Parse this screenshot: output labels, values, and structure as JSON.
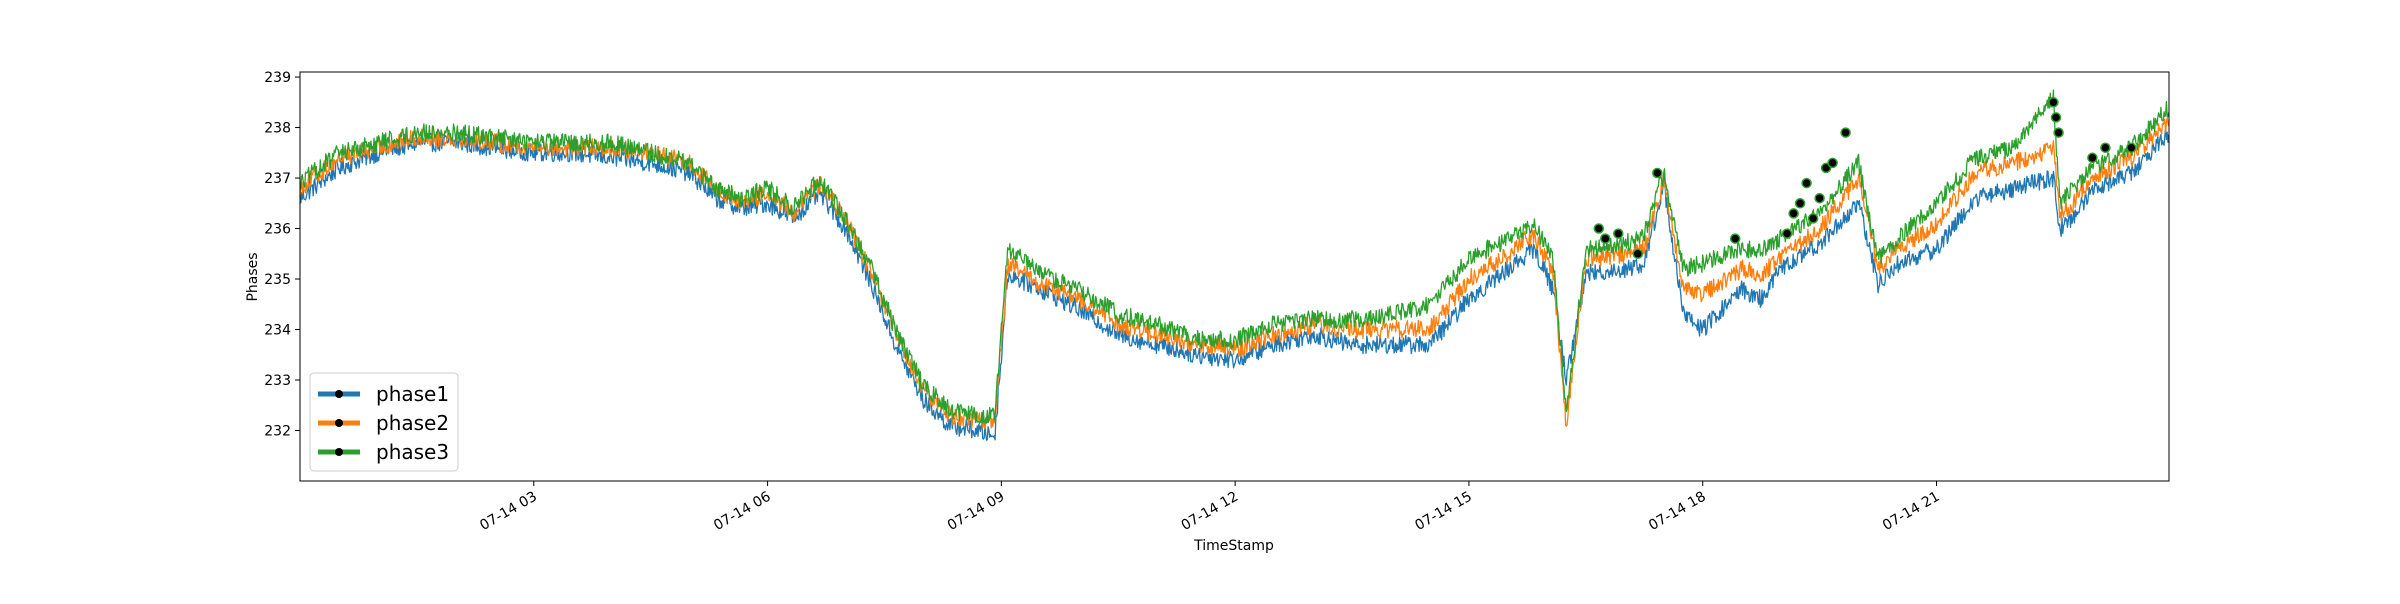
{
  "chart_data": {
    "type": "line",
    "title": "",
    "xlabel": "TimeStamp",
    "ylabel": "Phases",
    "xlim": [
      "07-14 00:00",
      "07-14 23:59"
    ],
    "ylim": [
      231.0,
      239.1
    ],
    "x_ticks": [
      "07-14 03",
      "07-14 06",
      "07-14 09",
      "07-14 12",
      "07-14 15",
      "07-14 18",
      "07-14 21"
    ],
    "y_ticks": [
      "232",
      "233",
      "234",
      "235",
      "236",
      "237",
      "238",
      "239"
    ],
    "grid": false,
    "legend_position": "lower-left",
    "x": [
      "00:00",
      "00:30",
      "01:00",
      "01:30",
      "02:00",
      "02:30",
      "03:00",
      "03:30",
      "04:00",
      "04:30",
      "05:00",
      "05:20",
      "05:40",
      "06:00",
      "06:20",
      "06:40",
      "07:00",
      "07:20",
      "07:40",
      "08:00",
      "08:20",
      "08:40",
      "08:55",
      "09:05",
      "09:30",
      "10:00",
      "10:30",
      "11:00",
      "11:30",
      "12:00",
      "12:30",
      "13:00",
      "13:30",
      "14:00",
      "14:30",
      "15:00",
      "15:30",
      "15:50",
      "16:05",
      "16:15",
      "16:30",
      "17:00",
      "17:15",
      "17:30",
      "17:45",
      "18:00",
      "18:30",
      "18:45",
      "19:00",
      "19:30",
      "20:00",
      "20:15",
      "20:30",
      "21:00",
      "21:30",
      "22:00",
      "22:30",
      "22:35",
      "22:45",
      "23:00",
      "23:30",
      "23:59"
    ],
    "series": [
      {
        "name": "phase1",
        "color": "#1f77b4",
        "values": [
          236.6,
          237.2,
          237.5,
          237.7,
          237.7,
          237.6,
          237.5,
          237.5,
          237.4,
          237.3,
          237.1,
          236.6,
          236.4,
          236.5,
          236.2,
          236.7,
          236.0,
          234.9,
          233.6,
          232.6,
          232.1,
          232.0,
          231.9,
          235.1,
          234.8,
          234.4,
          233.9,
          233.7,
          233.5,
          233.4,
          233.7,
          233.9,
          233.7,
          233.7,
          233.7,
          234.6,
          235.2,
          235.6,
          234.8,
          233.0,
          235.1,
          235.2,
          235.3,
          236.9,
          234.3,
          234.0,
          234.8,
          234.6,
          235.2,
          235.7,
          236.5,
          234.9,
          235.3,
          235.6,
          236.6,
          236.8,
          237.0,
          236.0,
          236.2,
          236.8,
          237.1,
          237.9
        ]
      },
      {
        "name": "phase2",
        "color": "#ff7f0e",
        "values": [
          236.8,
          237.4,
          237.6,
          237.8,
          237.8,
          237.7,
          237.6,
          237.6,
          237.6,
          237.5,
          237.3,
          236.8,
          236.5,
          236.7,
          236.3,
          236.9,
          236.2,
          235.1,
          233.8,
          232.8,
          232.3,
          232.2,
          232.2,
          235.3,
          234.9,
          234.6,
          234.1,
          233.9,
          233.7,
          233.6,
          233.9,
          234.1,
          234.0,
          234.0,
          234.0,
          235.0,
          235.5,
          235.9,
          235.1,
          232.1,
          235.4,
          235.5,
          235.6,
          237.0,
          234.8,
          234.7,
          235.2,
          235.1,
          235.4,
          236.0,
          237.0,
          235.2,
          235.6,
          236.1,
          237.1,
          237.3,
          237.6,
          236.3,
          236.5,
          237.0,
          237.4,
          238.1
        ]
      },
      {
        "name": "phase3",
        "color": "#2ca02c",
        "values": [
          236.9,
          237.5,
          237.7,
          237.9,
          237.9,
          237.8,
          237.7,
          237.7,
          237.7,
          237.5,
          237.3,
          236.8,
          236.6,
          236.8,
          236.4,
          237.0,
          236.2,
          235.2,
          233.9,
          232.9,
          232.4,
          232.3,
          232.3,
          235.6,
          235.1,
          234.8,
          234.3,
          234.1,
          233.8,
          233.8,
          234.1,
          234.2,
          234.2,
          234.3,
          234.5,
          235.4,
          235.8,
          236.1,
          235.4,
          232.3,
          235.6,
          235.7,
          235.9,
          237.1,
          235.2,
          235.3,
          235.6,
          235.6,
          235.8,
          236.3,
          237.3,
          235.4,
          235.8,
          236.5,
          237.4,
          237.6,
          238.6,
          236.5,
          236.8,
          237.2,
          237.6,
          238.4
        ]
      }
    ],
    "anomaly_markers": {
      "color": "#000000",
      "points": [
        {
          "x": "16:40",
          "y": 236.0
        },
        {
          "x": "16:45",
          "y": 235.8
        },
        {
          "x": "16:55",
          "y": 235.9
        },
        {
          "x": "17:10",
          "y": 235.5
        },
        {
          "x": "17:25",
          "y": 237.1
        },
        {
          "x": "18:25",
          "y": 235.8
        },
        {
          "x": "19:05",
          "y": 235.9
        },
        {
          "x": "19:10",
          "y": 236.3
        },
        {
          "x": "19:15",
          "y": 236.5
        },
        {
          "x": "19:20",
          "y": 236.9
        },
        {
          "x": "19:25",
          "y": 236.2
        },
        {
          "x": "19:30",
          "y": 236.6
        },
        {
          "x": "19:35",
          "y": 237.2
        },
        {
          "x": "19:40",
          "y": 237.3
        },
        {
          "x": "19:50",
          "y": 237.9
        },
        {
          "x": "22:30",
          "y": 238.5
        },
        {
          "x": "22:32",
          "y": 238.2
        },
        {
          "x": "22:34",
          "y": 237.9
        },
        {
          "x": "23:00",
          "y": 237.4
        },
        {
          "x": "23:10",
          "y": 237.6
        },
        {
          "x": "23:30",
          "y": 237.6
        }
      ]
    }
  }
}
